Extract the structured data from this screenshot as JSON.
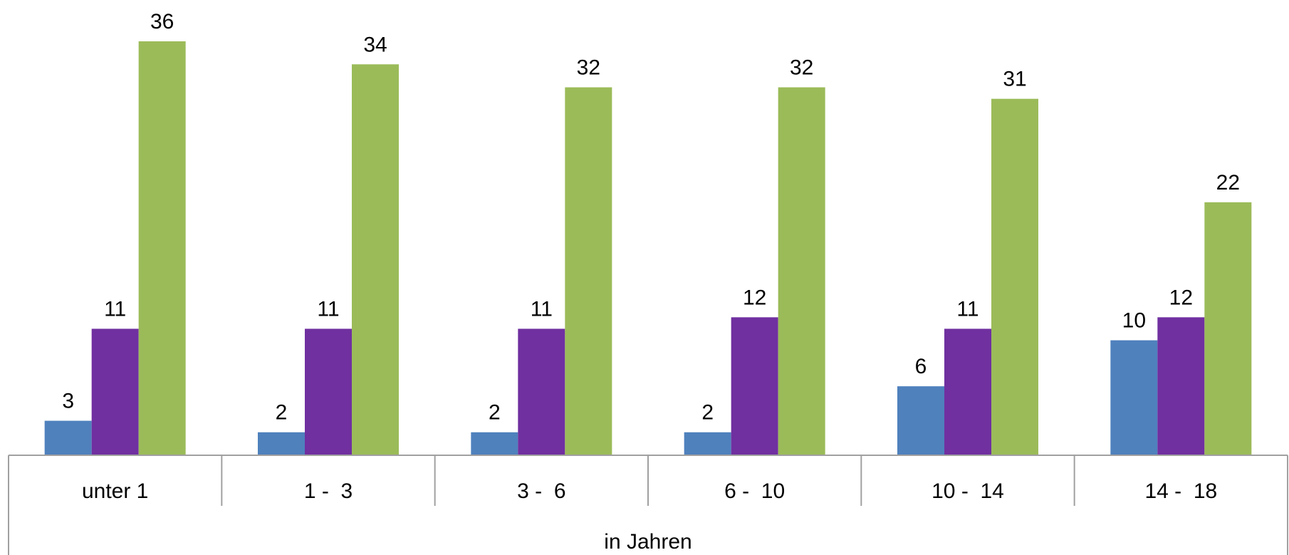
{
  "chart_data": {
    "type": "bar",
    "categories": [
      "unter 1",
      "1 -  3",
      "3 -  6",
      "6 -  10",
      "10 -  14",
      "14 -  18"
    ],
    "series": [
      {
        "color": "#4f81bd",
        "values": [
          3,
          2,
          2,
          2,
          6,
          10
        ]
      },
      {
        "color": "#7030a0",
        "values": [
          11,
          11,
          11,
          12,
          11,
          12
        ]
      },
      {
        "color": "#9bbb59",
        "values": [
          36,
          34,
          32,
          32,
          31,
          22
        ]
      }
    ],
    "xlabel": "in Jahren",
    "ylim": [
      0,
      36
    ],
    "grid": false,
    "legend": "none",
    "data_labels": true
  }
}
